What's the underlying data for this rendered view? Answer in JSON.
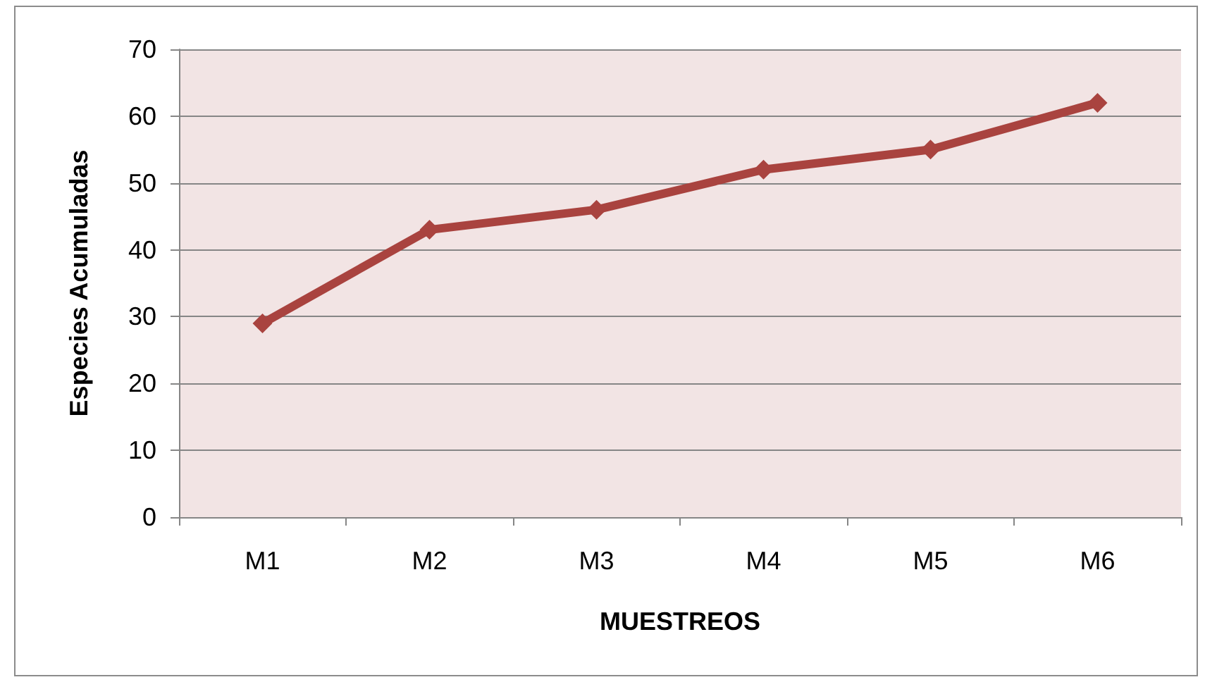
{
  "chart_data": {
    "type": "line",
    "xlabel": "MUESTREOS",
    "ylabel": "Especies Acumuladas",
    "categories": [
      "M1",
      "M2",
      "M3",
      "M4",
      "M5",
      "M6"
    ],
    "series": [
      {
        "color": "#a9433f",
        "values": [
          29,
          43,
          46,
          52,
          55,
          62
        ]
      }
    ],
    "ylim": [
      0,
      70
    ],
    "yticks": [
      0,
      10,
      20,
      30,
      40,
      50,
      60,
      70
    ],
    "grid": "y",
    "marker": "diamond",
    "line_style": "solid"
  }
}
